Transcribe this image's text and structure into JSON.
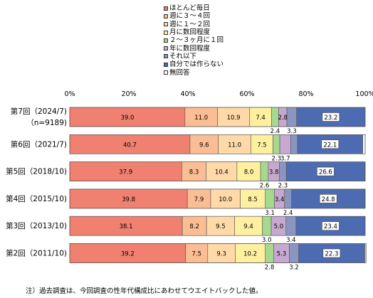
{
  "chart_data": {
    "type": "bar",
    "orientation": "horizontal",
    "stacked": true,
    "xlim": [
      0,
      100
    ],
    "x_ticks": [
      "0%",
      "20%",
      "40%",
      "60%",
      "80%",
      "100%"
    ],
    "grid": false,
    "legend_position": "top",
    "categories": [
      {
        "label": "第7回（2024/7)",
        "label2": "（n=9189)"
      },
      {
        "label": "第6回（2021/7)",
        "label2": ""
      },
      {
        "label": "第5回（2018/10)",
        "label2": ""
      },
      {
        "label": "第4回（2015/10)",
        "label2": ""
      },
      {
        "label": "第3回（2013/10)",
        "label2": ""
      },
      {
        "label": "第2回（2011/10)",
        "label2": ""
      }
    ],
    "series": [
      {
        "name": "ほとんど毎日",
        "color": "#f08070",
        "values": [
          39.0,
          40.7,
          37.9,
          39.8,
          38.1,
          39.2
        ]
      },
      {
        "name": "週に３～４回",
        "color": "#fbbd93",
        "values": [
          11.0,
          9.6,
          8.3,
          7.9,
          8.2,
          7.5
        ]
      },
      {
        "name": "週に１～２回",
        "color": "#ffd9a8",
        "values": [
          10.9,
          11.0,
          10.4,
          10.0,
          9.5,
          9.3
        ]
      },
      {
        "name": "月に数回程度",
        "color": "#fff0a0",
        "values": [
          7.4,
          7.5,
          8.0,
          8.5,
          9.4,
          10.2
        ]
      },
      {
        "name": "２～３ヶ月に１回",
        "color": "#a6d98e",
        "values": [
          2.4,
          2.3,
          2.6,
          3.1,
          3.0,
          2.8
        ]
      },
      {
        "name": "年に数回程度",
        "color": "#c6a8d0",
        "values": [
          2.8,
          3.7,
          3.8,
          3.4,
          5.0,
          5.3
        ]
      },
      {
        "name": "それ以下",
        "color": "#8a96c0",
        "values": [
          3.3,
          2.3,
          2.3,
          2.4,
          3.4,
          3.2
        ]
      },
      {
        "name": "自分では作らない",
        "color": "#4d6bb0",
        "values": [
          23.2,
          22.1,
          26.6,
          24.8,
          23.4,
          22.3
        ]
      },
      {
        "name": "無回答",
        "color": "#ffffff",
        "values": [
          0.0,
          0.8,
          0.1,
          0.1,
          0.0,
          0.5
        ]
      }
    ],
    "data_labels": [
      {
        "row": 0,
        "series": 0,
        "text": "39.0",
        "pos": "inside"
      },
      {
        "row": 0,
        "series": 1,
        "text": "11.0",
        "pos": "inside"
      },
      {
        "row": 0,
        "series": 2,
        "text": "10.9",
        "pos": "inside"
      },
      {
        "row": 0,
        "series": 3,
        "text": "7.4",
        "pos": "inside"
      },
      {
        "row": 0,
        "series": 4,
        "text": "2.4",
        "pos": "below"
      },
      {
        "row": 0,
        "series": 5,
        "text": "2.8",
        "pos": "inside"
      },
      {
        "row": 0,
        "series": 6,
        "text": "3.3",
        "pos": "below"
      },
      {
        "row": 0,
        "series": 7,
        "text": "23.2",
        "pos": "boxed"
      },
      {
        "row": 1,
        "series": 0,
        "text": "40.7",
        "pos": "inside"
      },
      {
        "row": 1,
        "series": 1,
        "text": "9.6",
        "pos": "inside"
      },
      {
        "row": 1,
        "series": 2,
        "text": "11.0",
        "pos": "inside"
      },
      {
        "row": 1,
        "series": 3,
        "text": "7.5",
        "pos": "inside"
      },
      {
        "row": 1,
        "series": 4,
        "text": "2.3",
        "pos": "below"
      },
      {
        "row": 1,
        "series": 5,
        "text": "3.7",
        "pos": "below"
      },
      {
        "row": 1,
        "series": 7,
        "text": "22.1",
        "pos": "boxed"
      },
      {
        "row": 2,
        "series": 0,
        "text": "37.9",
        "pos": "inside"
      },
      {
        "row": 2,
        "series": 1,
        "text": "8.3",
        "pos": "inside"
      },
      {
        "row": 2,
        "series": 2,
        "text": "10.4",
        "pos": "inside"
      },
      {
        "row": 2,
        "series": 3,
        "text": "8.0",
        "pos": "inside"
      },
      {
        "row": 2,
        "series": 4,
        "text": "2.6",
        "pos": "below"
      },
      {
        "row": 2,
        "series": 5,
        "text": "3.8",
        "pos": "inside"
      },
      {
        "row": 2,
        "series": 6,
        "text": "2.3",
        "pos": "below"
      },
      {
        "row": 2,
        "series": 7,
        "text": "26.6",
        "pos": "boxed"
      },
      {
        "row": 3,
        "series": 0,
        "text": "39.8",
        "pos": "inside"
      },
      {
        "row": 3,
        "series": 1,
        "text": "7.9",
        "pos": "inside"
      },
      {
        "row": 3,
        "series": 2,
        "text": "10.0",
        "pos": "inside"
      },
      {
        "row": 3,
        "series": 3,
        "text": "8.5",
        "pos": "inside"
      },
      {
        "row": 3,
        "series": 4,
        "text": "3.1",
        "pos": "below"
      },
      {
        "row": 3,
        "series": 5,
        "text": "3.4",
        "pos": "inside"
      },
      {
        "row": 3,
        "series": 6,
        "text": "2.4",
        "pos": "below"
      },
      {
        "row": 3,
        "series": 7,
        "text": "24.8",
        "pos": "boxed"
      },
      {
        "row": 4,
        "series": 0,
        "text": "38.1",
        "pos": "inside"
      },
      {
        "row": 4,
        "series": 1,
        "text": "8.2",
        "pos": "inside"
      },
      {
        "row": 4,
        "series": 2,
        "text": "9.5",
        "pos": "inside"
      },
      {
        "row": 4,
        "series": 3,
        "text": "9.4",
        "pos": "inside"
      },
      {
        "row": 4,
        "series": 4,
        "text": "3.0",
        "pos": "below"
      },
      {
        "row": 4,
        "series": 5,
        "text": "5.0",
        "pos": "inside"
      },
      {
        "row": 4,
        "series": 6,
        "text": "3.4",
        "pos": "below"
      },
      {
        "row": 4,
        "series": 7,
        "text": "23.4",
        "pos": "boxed"
      },
      {
        "row": 5,
        "series": 0,
        "text": "39.2",
        "pos": "inside"
      },
      {
        "row": 5,
        "series": 1,
        "text": "7.5",
        "pos": "inside"
      },
      {
        "row": 5,
        "series": 2,
        "text": "9.3",
        "pos": "inside"
      },
      {
        "row": 5,
        "series": 3,
        "text": "10.2",
        "pos": "inside"
      },
      {
        "row": 5,
        "series": 4,
        "text": "2.8",
        "pos": "below"
      },
      {
        "row": 5,
        "series": 5,
        "text": "5.3",
        "pos": "inside"
      },
      {
        "row": 5,
        "series": 6,
        "text": "3.2",
        "pos": "below"
      },
      {
        "row": 5,
        "series": 7,
        "text": "22.3",
        "pos": "boxed"
      }
    ]
  },
  "note": "注）過去調査は、今回調査の性年代構成比にあわせてウエイトバックした値。"
}
